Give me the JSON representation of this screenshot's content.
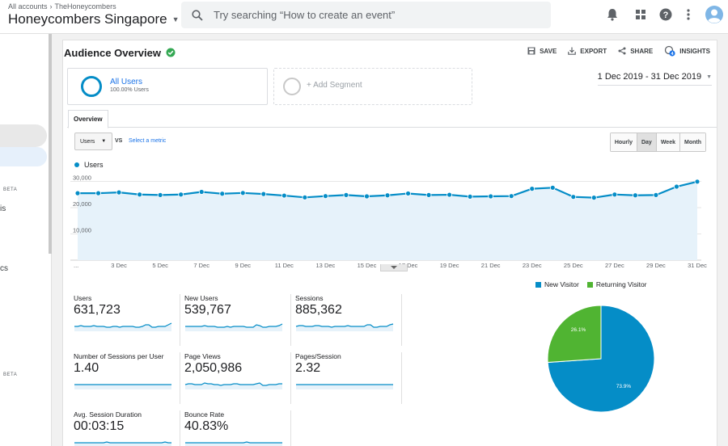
{
  "header": {
    "breadcrumb": [
      "All accounts",
      "TheHoneycombers"
    ],
    "account_name": "Honeycombers Singapore",
    "search_placeholder": "Try searching “How to create an event”"
  },
  "sidebar": {
    "fragments": [
      "is",
      "cs"
    ],
    "beta_labels": [
      "BETA",
      "BETA"
    ]
  },
  "report": {
    "title": "Audience Overview",
    "actions": [
      "SAVE",
      "EXPORT",
      "SHARE",
      "INSIGHTS"
    ],
    "insights_badge": "4",
    "date_range": "1 Dec 2019 - 31 Dec 2019",
    "segments": {
      "all_users": {
        "name": "All Users",
        "pct": "100.00% Users"
      },
      "add_segment": "+ Add Segment"
    },
    "tab": "Overview",
    "metric_select": "Users",
    "vs": "VS",
    "select_metric": "Select a metric",
    "granularity": [
      "Hourly",
      "Day",
      "Week",
      "Month"
    ],
    "granularity_active": "Day"
  },
  "chart_data": [
    {
      "type": "line",
      "series": [
        {
          "name": "Users",
          "values": [
            25500,
            25500,
            25800,
            25000,
            24800,
            25000,
            26000,
            25300,
            25600,
            25200,
            24600,
            23900,
            24400,
            24800,
            24300,
            24700,
            25400,
            24800,
            24900,
            24200,
            24300,
            24400,
            27200,
            27600,
            24100,
            23800,
            25000,
            24700,
            24800,
            28000,
            29900
          ]
        }
      ],
      "x": [
        "1 Dec",
        "2 Dec",
        "3 Dec",
        "4 Dec",
        "5 Dec",
        "6 Dec",
        "7 Dec",
        "8 Dec",
        "9 Dec",
        "10 Dec",
        "11 Dec",
        "12 Dec",
        "13 Dec",
        "14 Dec",
        "15 Dec",
        "16 Dec",
        "17 Dec",
        "18 Dec",
        "19 Dec",
        "20 Dec",
        "21 Dec",
        "22 Dec",
        "23 Dec",
        "24 Dec",
        "25 Dec",
        "26 Dec",
        "27 Dec",
        "28 Dec",
        "29 Dec",
        "30 Dec",
        "31 Dec"
      ],
      "xtick_labels": [
        "...",
        "3 Dec",
        "5 Dec",
        "7 Dec",
        "9 Dec",
        "11 Dec",
        "13 Dec",
        "15 Dec",
        "17 Dec",
        "19 Dec",
        "21 Dec",
        "23 Dec",
        "25 Dec",
        "27 Dec",
        "29 Dec",
        "31 Dec"
      ],
      "ytick_labels": [
        "30,000",
        "20,000",
        "10,000"
      ],
      "ylim": [
        0,
        32000
      ],
      "grid": true,
      "color": "#058dc7"
    },
    {
      "type": "pie",
      "categories": [
        "New Visitor",
        "Returning Visitor"
      ],
      "values": [
        73.9,
        26.1
      ],
      "labels": [
        "73.9%",
        "26.1%"
      ],
      "colors": [
        "#058dc7",
        "#50b432"
      ]
    }
  ],
  "metrics": [
    {
      "label": "Users",
      "value": "631,723",
      "spark": [
        5,
        5,
        6,
        5,
        5,
        5,
        6,
        5,
        5,
        5,
        4,
        4,
        5,
        5,
        4,
        5,
        5,
        5,
        5,
        4,
        4,
        5,
        7,
        7,
        4,
        4,
        5,
        5,
        5,
        7,
        9
      ]
    },
    {
      "label": "New Users",
      "value": "539,767",
      "spark": [
        5,
        5,
        5,
        5,
        5,
        5,
        6,
        5,
        5,
        5,
        4,
        4,
        4,
        5,
        4,
        5,
        5,
        5,
        5,
        4,
        4,
        4,
        7,
        6,
        4,
        4,
        5,
        5,
        5,
        6,
        8
      ]
    },
    {
      "label": "Sessions",
      "value": "885,362",
      "spark": [
        5,
        6,
        6,
        5,
        5,
        5,
        6,
        6,
        5,
        5,
        5,
        4,
        5,
        5,
        5,
        5,
        6,
        5,
        5,
        5,
        5,
        5,
        7,
        7,
        4,
        4,
        5,
        5,
        5,
        7,
        8
      ]
    },
    {
      "label": "Number of Sessions per User",
      "value": "1.40",
      "spark": [
        5,
        5,
        5,
        5,
        5,
        5,
        5,
        5,
        5,
        5,
        5,
        5,
        5,
        5,
        5,
        5,
        5,
        5,
        5,
        5,
        5,
        5,
        5,
        5,
        5,
        5,
        5,
        5,
        5,
        5,
        5
      ]
    },
    {
      "label": "Page Views",
      "value": "2,050,986",
      "spark": [
        5,
        6,
        6,
        5,
        5,
        5,
        7,
        6,
        6,
        5,
        5,
        4,
        5,
        5,
        5,
        6,
        6,
        5,
        5,
        5,
        5,
        5,
        6,
        7,
        4,
        4,
        5,
        5,
        5,
        6,
        6
      ]
    },
    {
      "label": "Pages/Session",
      "value": "2.32",
      "spark": [
        5,
        5,
        5,
        5,
        5,
        5,
        5,
        5,
        5,
        5,
        5,
        5,
        5,
        5,
        5,
        5,
        5,
        5,
        5,
        5,
        5,
        5,
        5,
        5,
        5,
        5,
        5,
        5,
        5,
        5,
        5
      ]
    },
    {
      "label": "Avg. Session Duration",
      "value": "00:03:15",
      "spark": [
        5,
        5,
        5,
        5,
        5,
        5,
        5,
        5,
        5,
        5,
        6,
        5,
        5,
        5,
        5,
        5,
        5,
        5,
        5,
        5,
        5,
        5,
        5,
        5,
        5,
        5,
        5,
        5,
        6,
        5,
        5
      ]
    },
    {
      "label": "Bounce Rate",
      "value": "40.83%",
      "spark": [
        5,
        5,
        5,
        5,
        5,
        5,
        5,
        5,
        5,
        5,
        5,
        5,
        5,
        5,
        5,
        5,
        5,
        5,
        5,
        6,
        5,
        5,
        5,
        5,
        5,
        5,
        5,
        5,
        5,
        5,
        5
      ]
    }
  ],
  "colors": {
    "accent": "#058dc7",
    "green": "#50b432",
    "verified": "#34a853"
  }
}
